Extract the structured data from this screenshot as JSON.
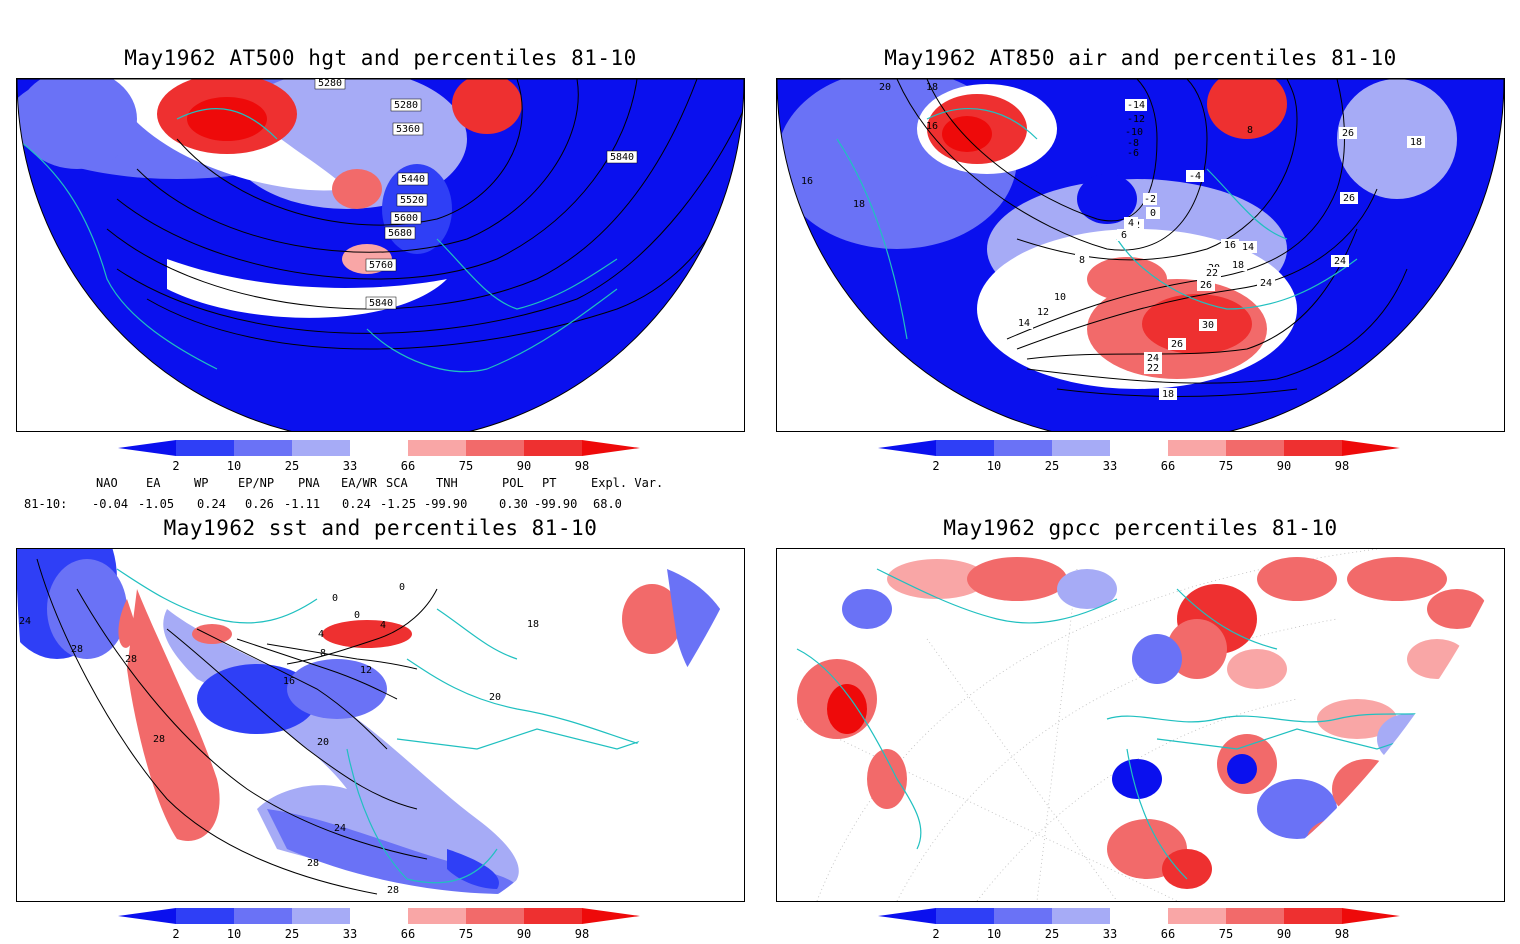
{
  "panels": [
    {
      "title": "May1962 AT500 hgt and percentiles 81-10",
      "contour_labels": [
        "5280",
        "5280",
        "5360",
        "5440",
        "5520",
        "5600",
        "5680",
        "5760",
        "5840",
        "5840"
      ]
    },
    {
      "title": "May1962 AT850 air and percentiles 81-10",
      "contour_labels": [
        "20",
        "18",
        "16",
        "-14",
        "-12",
        "-10",
        "-8",
        "-6",
        "-4",
        "-2",
        "0",
        "2",
        "4",
        "6",
        "8",
        "10",
        "12",
        "14",
        "16",
        "18",
        "20",
        "22",
        "24",
        "26",
        "30",
        "26",
        "24",
        "22",
        "18",
        "8",
        "16",
        "18",
        "26",
        "26",
        "24",
        "18",
        "14"
      ]
    },
    {
      "title": "May1962 sst and percentiles 81-10",
      "contour_labels": [
        "24",
        "28",
        "28",
        "28",
        "0",
        "0",
        "0",
        "4",
        "4",
        "8",
        "12",
        "16",
        "20",
        "24",
        "28",
        "28",
        "20",
        "18"
      ]
    },
    {
      "title": "May1962 gpcc percentiles 81-10",
      "contour_labels": []
    }
  ],
  "colorbar": {
    "ticks": [
      "2",
      "10",
      "25",
      "33",
      "66",
      "75",
      "90",
      "98"
    ],
    "colors": [
      "#0a10ee",
      "#2f3ff6",
      "#6a72f6",
      "#a6abf6",
      "#ffffff",
      "#f9a6a6",
      "#f26a6a",
      "#ee3030",
      "#ee0a0a"
    ]
  },
  "indices": {
    "headers": [
      "NAO",
      "EA",
      "WP",
      "EP/NP",
      "PNA",
      "EA/WR",
      "SCA",
      "TNH",
      "POL",
      "PT",
      "Expl. Var."
    ],
    "row_label": "81-10:",
    "values": [
      "-0.04",
      "-1.05",
      "0.24",
      "0.26",
      "-1.11",
      "0.24",
      "-1.25",
      "-99.90",
      "0.30",
      "-99.90",
      "68.0"
    ]
  }
}
